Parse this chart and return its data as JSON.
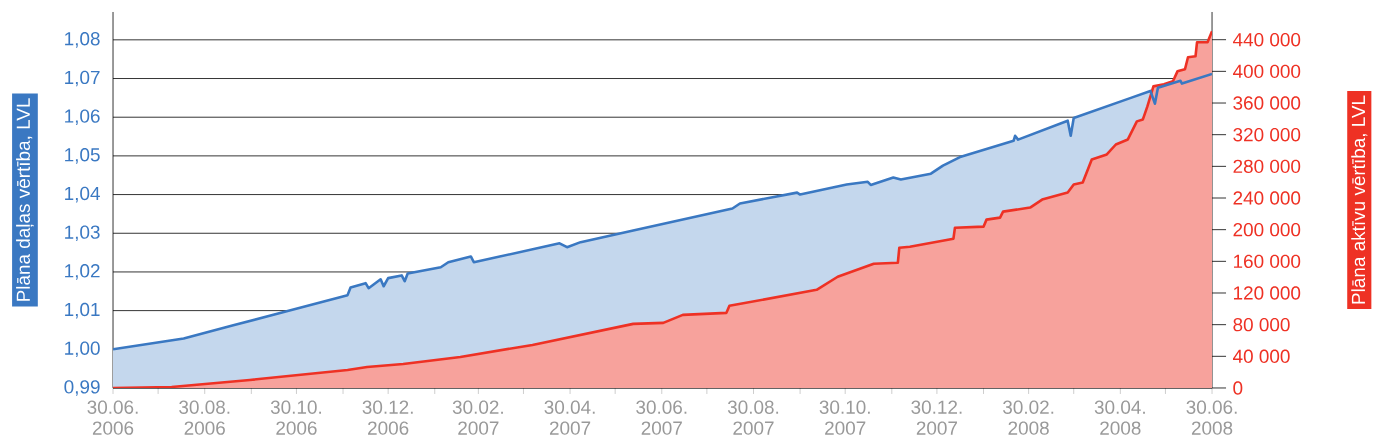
{
  "chart_data": {
    "type": "area",
    "ylabel": "Plāna daļas vērtība, LVL",
    "y2label": "Plāna aktīvu vērtība, LVL",
    "xlim": [
      "2006-06-30",
      "2008-06-30"
    ],
    "ylim": [
      0.99,
      1.0872
    ],
    "y2lim": [
      0,
      475000
    ],
    "grid": "y",
    "yticks": [
      {
        "value": 0.99,
        "label": "0,99"
      },
      {
        "value": 1.0,
        "label": "1,00"
      },
      {
        "value": 1.01,
        "label": "1,01"
      },
      {
        "value": 1.02,
        "label": "1,02"
      },
      {
        "value": 1.03,
        "label": "1,03"
      },
      {
        "value": 1.04,
        "label": "1,04"
      },
      {
        "value": 1.05,
        "label": "1,05"
      },
      {
        "value": 1.06,
        "label": "1,06"
      },
      {
        "value": 1.07,
        "label": "1,07"
      },
      {
        "value": 1.08,
        "label": "1,08"
      }
    ],
    "y2ticks": [
      0,
      {
        "value": 40000,
        "label": "40 000"
      },
      {
        "value": 80000,
        "label": "80 000"
      },
      {
        "value": 120000,
        "label": "120 000"
      },
      {
        "value": 160000,
        "label": "160 000"
      },
      {
        "value": 200000,
        "label": "200 000"
      },
      {
        "value": 240000,
        "label": "240 000"
      },
      {
        "value": 280000,
        "label": "280 000"
      },
      {
        "value": 320000,
        "label": "320 000"
      },
      {
        "value": 360000,
        "label": "360 000"
      },
      {
        "value": 400000,
        "label": "400 000"
      },
      {
        "value": 440000,
        "label": "440 000"
      }
    ],
    "xticks": [
      {
        "value": "2006-06-30",
        "label": "30.06. 2006"
      },
      {
        "value": "2006-07-30",
        "label": null
      },
      {
        "value": "2006-08-30",
        "label": "30.08. 2006"
      },
      {
        "value": "2006-09-30",
        "label": null
      },
      {
        "value": "2006-10-30",
        "label": "30.10. 2006"
      },
      {
        "value": "2006-11-30",
        "label": null
      },
      {
        "value": "2006-12-30",
        "label": "30.12. 2006"
      },
      {
        "value": "2007-01-30",
        "label": null
      },
      {
        "value": "2007-02-28",
        "label": "30.02. 2007"
      },
      {
        "value": "2007-03-30",
        "label": null
      },
      {
        "value": "2007-04-30",
        "label": "30.04. 2007"
      },
      {
        "value": "2007-05-30",
        "label": null
      },
      {
        "value": "2007-06-30",
        "label": "30.06. 2007"
      },
      {
        "value": "2007-07-30",
        "label": null
      },
      {
        "value": "2007-08-30",
        "label": "30.08. 2007"
      },
      {
        "value": "2007-09-30",
        "label": null
      },
      {
        "value": "2007-10-30",
        "label": "30.10. 2007"
      },
      {
        "value": "2007-11-30",
        "label": null
      },
      {
        "value": "2007-12-30",
        "label": "30.12. 2007"
      },
      {
        "value": "2008-01-30",
        "label": null
      },
      {
        "value": "2008-02-29",
        "label": "30.02. 2008"
      },
      {
        "value": "2008-03-30",
        "label": null
      },
      {
        "value": "2008-04-30",
        "label": "30.04. 2008"
      },
      {
        "value": "2008-05-30",
        "label": null
      },
      {
        "value": "2008-06-30",
        "label": "30.06. 2008"
      }
    ],
    "series": [
      {
        "color": "#3a78c2",
        "x": [
          "2006-06-30",
          "2006-08-16",
          "2006-09-18",
          "2006-10-21",
          "2006-12-03",
          "2006-12-05",
          "2006-12-15",
          "2006-12-17",
          "2006-12-25",
          "2006-12-27",
          "2006-12-30",
          "2007-01-08",
          "2007-01-10",
          "2007-01-12",
          "2007-02-03",
          "2007-02-08",
          "2007-02-23",
          "2007-02-25",
          "2007-04-23",
          "2007-04-28",
          "2007-05-07",
          "2007-06-11",
          "2007-08-16",
          "2007-08-21",
          "2007-09-28",
          "2007-09-30",
          "2007-10-31",
          "2007-11-14",
          "2007-11-16",
          "2007-12-01",
          "2007-12-06",
          "2007-12-26",
          "2008-01-03",
          "2008-01-15",
          "2008-02-19",
          "2008-02-20",
          "2008-02-22",
          "2008-03-26",
          "2008-03-28",
          "2008-03-30",
          "2008-05-07",
          "2008-05-20",
          "2008-05-23",
          "2008-05-25",
          "2008-06-09",
          "2008-06-10",
          "2008-06-30"
        ],
        "values": [
          1.0,
          1.0028,
          1.0062,
          1.0096,
          1.014,
          1.016,
          1.0171,
          1.0158,
          1.0181,
          1.0163,
          1.0184,
          1.0191,
          1.0176,
          1.0196,
          1.0212,
          1.0225,
          1.024,
          1.0225,
          1.0274,
          1.0264,
          1.0277,
          1.0307,
          1.0364,
          1.0377,
          1.0405,
          1.04,
          1.0426,
          1.0433,
          1.0425,
          1.0444,
          1.0439,
          1.0454,
          1.0475,
          1.0498,
          1.0539,
          1.0552,
          1.0542,
          1.0591,
          1.0552,
          1.0598,
          1.065,
          1.0668,
          1.0635,
          1.0676,
          1.0694,
          1.0687,
          1.0712
        ]
      },
      {
        "color": "#ee3124",
        "axis": "y2",
        "x": [
          "2006-06-30",
          "2006-08-08",
          "2006-09-29",
          "2006-12-03",
          "2006-12-16",
          "2007-01-09",
          "2007-02-16",
          "2007-04-05",
          "2007-06-11",
          "2007-07-01",
          "2007-07-14",
          "2007-08-12",
          "2007-08-14",
          "2007-10-11",
          "2007-10-25",
          "2007-11-18",
          "2007-12-04",
          "2007-12-05",
          "2007-12-12",
          "2008-01-10",
          "2008-01-11",
          "2008-01-30",
          "2008-02-01",
          "2008-02-10",
          "2008-02-12",
          "2008-03-01",
          "2008-03-09",
          "2008-03-26",
          "2008-03-30",
          "2008-04-05",
          "2008-04-11",
          "2008-04-21",
          "2008-04-27",
          "2008-05-05",
          "2008-05-11",
          "2008-05-15",
          "2008-05-18",
          "2008-05-22",
          "2008-05-29",
          "2008-06-04",
          "2008-06-07",
          "2008-06-12",
          "2008-06-14",
          "2008-06-19",
          "2008-06-20",
          "2008-06-27",
          "2008-06-30"
        ],
        "values": [
          0,
          1300,
          10100,
          22800,
          26600,
          30400,
          39200,
          54400,
          81000,
          82300,
          92400,
          94900,
          103800,
          124000,
          140500,
          157000,
          158200,
          177200,
          178500,
          188600,
          202500,
          203800,
          212700,
          215200,
          222800,
          227900,
          238000,
          246900,
          257000,
          259500,
          288600,
          295000,
          307600,
          314000,
          336800,
          339300,
          355700,
          381000,
          383600,
          387400,
          400000,
          402600,
          417800,
          419000,
          436700,
          436700,
          450700
        ]
      }
    ]
  }
}
